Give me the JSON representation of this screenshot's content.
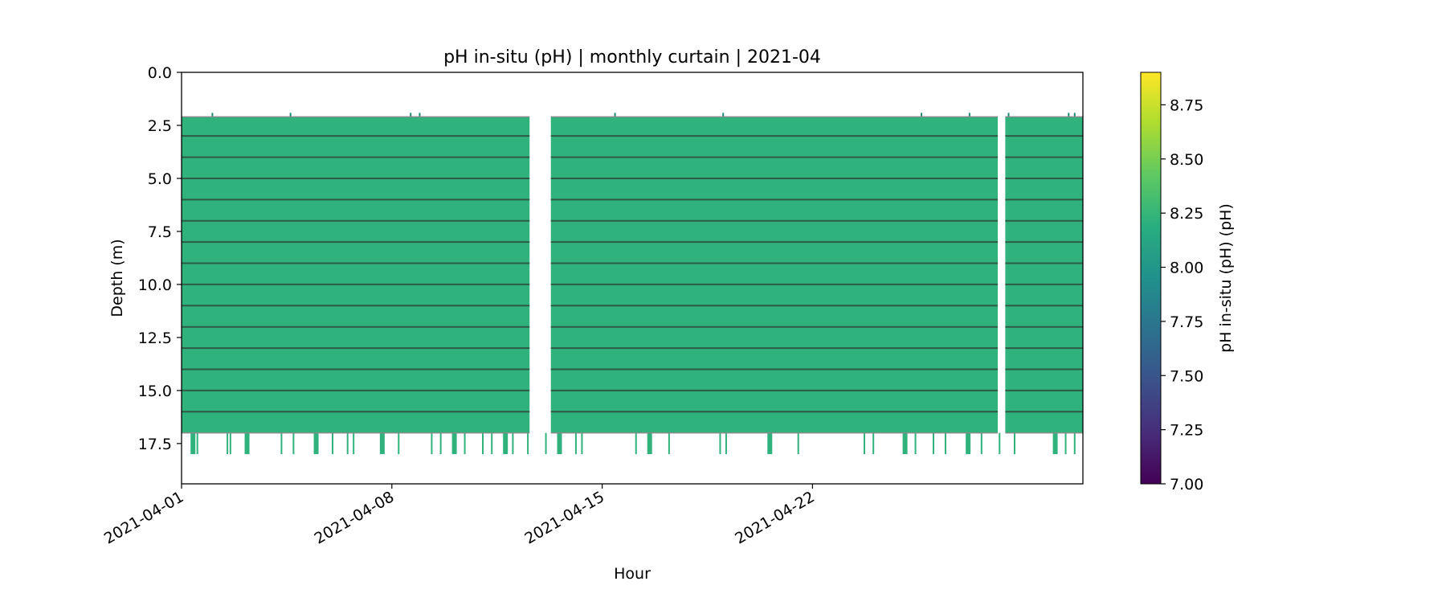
{
  "chart_data": {
    "type": "heatmap",
    "title": "pH in-situ (pH) | monthly curtain | 2021-04",
    "xlabel": "Hour",
    "ylabel": "Depth (m)",
    "x_range": [
      "2021-04-01",
      "2021-05-01"
    ],
    "x_ticks": [
      "2021-04-01",
      "2021-04-08",
      "2021-04-15",
      "2021-04-22"
    ],
    "y_range": [
      0,
      19.4
    ],
    "y_inverted": true,
    "y_ticks": [
      "0.0",
      "2.5",
      "5.0",
      "7.5",
      "10.0",
      "12.5",
      "15.0",
      "17.5"
    ],
    "colormap": "viridis",
    "colorbar": {
      "label": "pH in-situ (pH) (pH)",
      "range": [
        7.0,
        8.9
      ],
      "ticks": [
        "7.00",
        "7.25",
        "7.50",
        "7.75",
        "8.00",
        "8.25",
        "8.50",
        "8.75"
      ]
    },
    "data_segments": [
      {
        "start": "2021-04-01",
        "end": "2021-04-12T14:00",
        "depth_top": 2.1,
        "depth_bottom": 17.0,
        "ph": 8.22
      },
      {
        "start": "2021-04-13T07:00",
        "end": "2021-04-28T04:00",
        "depth_top": 2.1,
        "depth_bottom": 17.0,
        "ph": 8.22
      },
      {
        "start": "2021-04-28T10:00",
        "end": "2021-05-01",
        "depth_top": 2.1,
        "depth_bottom": 17.0,
        "ph": 8.22
      }
    ],
    "sensor_depths": [
      3,
      4,
      5,
      6,
      7,
      8,
      9,
      10,
      11,
      12,
      13,
      14,
      15,
      16
    ],
    "data_gaps": [
      {
        "start": "2021-04-12T14:00",
        "end": "2021-04-13T07:00"
      },
      {
        "start": "2021-04-28T04:00",
        "end": "2021-04-28T10:00"
      }
    ],
    "bottom_extension_depth": 18.0,
    "bottom_extension_days": [
      0.3,
      0.5,
      1.5,
      1.6,
      2.1,
      2.2,
      3.3,
      3.7,
      4.4,
      5.0,
      5.5,
      5.7,
      6.6,
      7.2,
      8.3,
      8.6,
      9.0,
      9.4,
      10.0,
      10.3,
      10.7,
      11.0,
      11.5,
      12.1,
      12.5,
      13.1,
      13.3,
      15.1,
      15.5,
      16.2,
      17.9,
      18.1,
      19.5,
      20.5,
      22.7,
      23.0,
      24.0,
      24.4,
      25.0,
      25.4,
      26.1,
      26.6,
      27.2,
      27.7,
      29.0,
      29.4,
      29.7
    ],
    "surface_spike_days": [
      1.0,
      3.6,
      7.6,
      7.9,
      14.4,
      18.0,
      24.6,
      26.2,
      27.5,
      29.5,
      29.7
    ]
  }
}
